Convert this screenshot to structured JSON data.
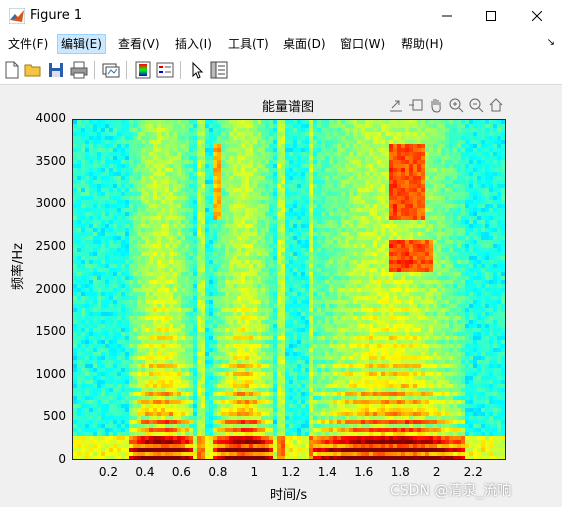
{
  "window": {
    "title": "Figure 1"
  },
  "menu": {
    "items": [
      "文件(F)",
      "编辑(E)",
      "查看(V)",
      "插入(I)",
      "工具(T)",
      "桌面(D)",
      "窗口(W)",
      "帮助(H)"
    ],
    "active_index": 1
  },
  "toolbar": {
    "icons": [
      "new-file-icon",
      "open-folder-icon",
      "save-icon",
      "print-icon",
      "link-plot-icon",
      "colorbar-icon",
      "legend-icon",
      "pointer-icon",
      "property-inspector-icon"
    ]
  },
  "axes_toolbar": {
    "icons": [
      "export-icon",
      "brush-icon",
      "pan-icon",
      "zoom-in-icon",
      "zoom-out-icon",
      "home-icon"
    ]
  },
  "chart_data": {
    "type": "heatmap",
    "title": "能量谱图",
    "xlabel": "时间/s",
    "ylabel": "频率/Hz",
    "xlim": [
      0,
      2.38
    ],
    "ylim": [
      0,
      4000
    ],
    "xticks": [
      "0.2",
      "0.4",
      "0.6",
      "0.8",
      "1",
      "1.2",
      "1.4",
      "1.6",
      "1.8",
      "2",
      "2.2"
    ],
    "yticks": [
      "0",
      "500",
      "1000",
      "1500",
      "2000",
      "2500",
      "3000",
      "3500",
      "4000"
    ],
    "colormap": "jet"
  },
  "watermark": "CSDN @清泉_流响"
}
